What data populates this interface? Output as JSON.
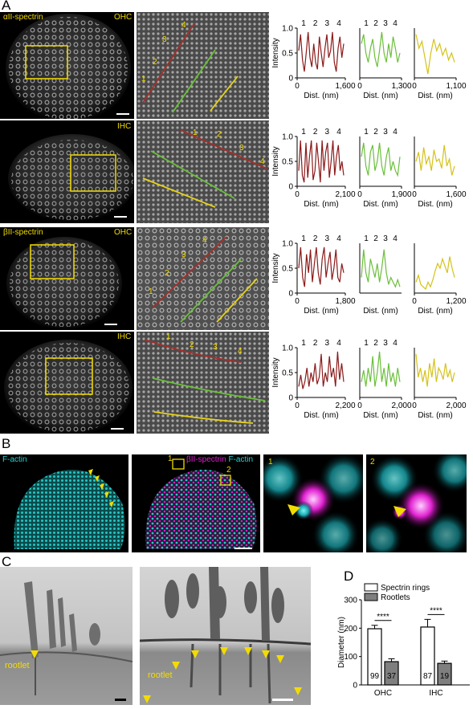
{
  "panels": {
    "a": "A",
    "b": "B",
    "c": "C",
    "d": "D"
  },
  "row_labels": [
    {
      "protein": "αII-spectrin",
      "cell": "OHC"
    },
    {
      "protein": "",
      "cell": "IHC"
    },
    {
      "protein": "βII-spectrin",
      "cell": "OHC"
    },
    {
      "protein": "",
      "cell": "IHC"
    }
  ],
  "zoom_numbers": [
    "1",
    "2",
    "3",
    "4"
  ],
  "panel_b": {
    "label1": "F-actin",
    "label2_magenta": "βII-spectrin",
    "label2_cyan": "F-actin",
    "box1": "1",
    "box2": "2",
    "inset1": "1",
    "inset2": "2"
  },
  "panel_c": {
    "rootlet1": "rootlet",
    "rootlet2": "rootlet"
  },
  "colors": {
    "red": "#8b1a1a",
    "green": "#6abf3a",
    "yellow": "#d4c21a",
    "cyan": "#22d3d3",
    "magenta": "#e020d0",
    "label_yellow": "#f2dc00"
  },
  "chart_data": [
    {
      "type": "line",
      "row": 1,
      "color": "red",
      "xlabel": "Dist. (nm)",
      "ylabel": "Intensity",
      "xticks": [
        "0",
        "1,600"
      ],
      "xlim": [
        0,
        1600
      ],
      "yticks": [
        "0",
        "0.5",
        "1.0"
      ],
      "ylim": [
        0,
        1.0
      ],
      "peaks": [
        "1",
        "2",
        "3",
        "4"
      ],
      "y": [
        0.55,
        0.9,
        0.35,
        0.1,
        0.5,
        0.95,
        0.4,
        0.2,
        0.7,
        0.3,
        0.15,
        0.85,
        0.5,
        0.2,
        0.6,
        0.9,
        0.4,
        0.55,
        0.95,
        0.3,
        0.1,
        0.6,
        0.85,
        0.4,
        0.7
      ]
    },
    {
      "type": "line",
      "row": 1,
      "color": "green",
      "xlabel": "Dist. (nm)",
      "ylabel": "",
      "xticks": [
        "0",
        "1,300"
      ],
      "xlim": [
        0,
        1300
      ],
      "yticks": [],
      "ylim": [
        0,
        1.0
      ],
      "peaks": [
        "1",
        "2",
        "3",
        "4"
      ],
      "y": [
        0.7,
        0.9,
        0.5,
        0.3,
        0.6,
        0.8,
        0.4,
        0.2,
        0.55,
        0.95,
        0.5,
        0.3,
        0.7,
        0.4,
        0.85,
        0.6,
        0.3,
        0.5
      ]
    },
    {
      "type": "line",
      "row": 1,
      "color": "yellow",
      "xlabel": "Dist. (nm)",
      "ylabel": "",
      "xticks": [
        "0",
        "1,100"
      ],
      "xlim": [
        0,
        1100
      ],
      "yticks": [],
      "ylim": [
        0,
        1.0
      ],
      "peaks": [],
      "y": [
        0.9,
        0.6,
        0.75,
        0.4,
        0.05,
        0.5,
        0.8,
        0.55,
        0.7,
        0.45,
        0.6,
        0.35,
        0.5,
        0.3
      ]
    },
    {
      "type": "line",
      "row": 2,
      "color": "red",
      "xlabel": "Dist. (nm)",
      "ylabel": "Intensity",
      "xticks": [
        "0",
        "2,100"
      ],
      "xlim": [
        0,
        2100
      ],
      "yticks": [
        "0",
        "0.5",
        "1.0"
      ],
      "ylim": [
        0,
        1.0
      ],
      "peaks": [
        "1",
        "2",
        "3",
        "4"
      ],
      "y": [
        0.3,
        0.95,
        0.2,
        0.05,
        0.9,
        0.15,
        0.6,
        0.95,
        0.1,
        0.3,
        0.9,
        0.5,
        0.05,
        0.95,
        0.3,
        0.7,
        0.9,
        0.15,
        0.5,
        0.95,
        0.2,
        0.6,
        0.85,
        0.3,
        0.5,
        0.2
      ]
    },
    {
      "type": "line",
      "row": 2,
      "color": "green",
      "xlabel": "Dist. (nm)",
      "ylabel": "",
      "xticks": [
        "0",
        "1,900"
      ],
      "xlim": [
        0,
        1900
      ],
      "yticks": [],
      "ylim": [
        0,
        1.0
      ],
      "peaks": [
        "1",
        "2",
        "3",
        "4"
      ],
      "y": [
        0.6,
        0.9,
        0.4,
        0.2,
        0.7,
        0.85,
        0.3,
        0.5,
        0.9,
        0.4,
        0.2,
        0.6,
        0.8,
        0.3,
        0.5,
        0.3,
        0.2,
        0.6
      ]
    },
    {
      "type": "line",
      "row": 2,
      "color": "yellow",
      "xlabel": "Dist. (nm)",
      "ylabel": "",
      "xticks": [
        "0",
        "1,600"
      ],
      "xlim": [
        0,
        1600
      ],
      "yticks": [],
      "ylim": [
        0,
        1.0
      ],
      "peaks": [],
      "y": [
        0.5,
        0.7,
        0.3,
        0.8,
        0.45,
        0.6,
        0.3,
        0.75,
        0.5,
        0.55,
        0.35,
        0.85,
        0.4,
        0.55,
        0.2,
        0.4
      ]
    },
    {
      "type": "line",
      "row": 3,
      "color": "red",
      "xlabel": "Dist. (nm)",
      "ylabel": "Intensity",
      "xticks": [
        "0",
        "1,800"
      ],
      "xlim": [
        0,
        1800
      ],
      "yticks": [
        "0",
        "0.5",
        "1.0"
      ],
      "ylim": [
        0,
        1.0
      ],
      "peaks": [
        "1",
        "2",
        "3",
        "4"
      ],
      "y": [
        0.5,
        0.95,
        0.3,
        0.1,
        0.8,
        0.4,
        0.9,
        0.2,
        0.6,
        0.95,
        0.4,
        0.15,
        0.7,
        0.95,
        0.3,
        0.6,
        0.85,
        0.25,
        0.5,
        0.9,
        0.3,
        0.2,
        0.6,
        0.4
      ]
    },
    {
      "type": "line",
      "row": 3,
      "color": "green",
      "xlabel": "Dist. (nm)",
      "ylabel": "",
      "xticks": [],
      "xlim": [
        0,
        1600
      ],
      "yticks": [],
      "ylim": [
        0,
        1.0
      ],
      "peaks": [
        "1",
        "2",
        "3",
        "4"
      ],
      "y": [
        0.3,
        0.9,
        0.4,
        0.2,
        0.7,
        0.5,
        0.3,
        0.6,
        0.2,
        0.5,
        0.9,
        0.4,
        0.15,
        0.3,
        0.2,
        0.1,
        0.25,
        0.1
      ]
    },
    {
      "type": "line",
      "row": 3,
      "color": "yellow",
      "xlabel": "Dist. (nm)",
      "ylabel": "",
      "xticks": [
        "0",
        "1,200"
      ],
      "xlim": [
        0,
        1200
      ],
      "yticks": [],
      "ylim": [
        0,
        1.0
      ],
      "peaks": [],
      "y": [
        0.2,
        0.35,
        0.15,
        0.1,
        0.05,
        0.2,
        0.1,
        0.25,
        0.45,
        0.6,
        0.5,
        0.7,
        0.55,
        0.4,
        0.75,
        0.5,
        0.3
      ]
    },
    {
      "type": "line",
      "row": 4,
      "color": "red",
      "xlabel": "Dist. (nm)",
      "ylabel": "Intensity",
      "xticks": [
        "0",
        "2,200"
      ],
      "xlim": [
        0,
        2200
      ],
      "yticks": [
        "0",
        "0.5",
        "1.0"
      ],
      "ylim": [
        0,
        1.0
      ],
      "peaks": [
        "1",
        "2",
        "3",
        "4"
      ],
      "y": [
        0.2,
        0.45,
        0.15,
        0.3,
        0.6,
        0.2,
        0.5,
        0.3,
        0.7,
        0.25,
        0.4,
        0.9,
        0.2,
        0.5,
        0.3,
        0.85,
        0.4,
        0.6,
        0.2,
        0.95,
        0.35,
        0.7,
        0.3
      ]
    },
    {
      "type": "line",
      "row": 4,
      "color": "green",
      "xlabel": "Dist. (nm)",
      "ylabel": "",
      "xticks": [
        "0",
        "2,000"
      ],
      "xlim": [
        0,
        2000
      ],
      "yticks": [],
      "ylim": [
        0,
        1.0
      ],
      "peaks": [
        "1",
        "2",
        "3",
        "4"
      ],
      "y": [
        0.3,
        0.55,
        0.2,
        0.6,
        0.3,
        0.85,
        0.2,
        0.5,
        0.95,
        0.3,
        0.6,
        0.2,
        0.7,
        0.3,
        0.5,
        0.2,
        0.6,
        0.3
      ]
    },
    {
      "type": "line",
      "row": 4,
      "color": "yellow",
      "xlabel": "Dist. (nm)",
      "ylabel": "",
      "xticks": [
        "0",
        "2,000"
      ],
      "xlim": [
        0,
        2000
      ],
      "yticks": [],
      "ylim": [
        0,
        1.0
      ],
      "peaks": [],
      "y": [
        0.9,
        0.4,
        0.6,
        0.3,
        0.55,
        0.2,
        0.7,
        0.4,
        0.8,
        0.3,
        0.6,
        0.5,
        0.35,
        0.7,
        0.4,
        0.55,
        0.3,
        0.5
      ]
    },
    {
      "type": "bar",
      "title": "",
      "xlabel": "",
      "ylabel": "Diameter (nm)",
      "ylim": [
        0,
        300
      ],
      "yticks": [
        "0",
        "100",
        "200",
        "300"
      ],
      "categories": [
        "OHC",
        "IHC"
      ],
      "legend_position": "top",
      "series": [
        {
          "name": "Spectrin rings",
          "values": [
            198,
            204
          ],
          "errors": [
            12,
            27
          ],
          "n": [
            "99",
            "87"
          ],
          "fill": "#ffffff"
        },
        {
          "name": "Rootlets",
          "values": [
            82,
            76
          ],
          "errors": [
            10,
            8
          ],
          "n": [
            "37",
            "19"
          ],
          "fill": "#7f7f7f"
        }
      ],
      "significance": [
        "****",
        "****"
      ]
    }
  ]
}
